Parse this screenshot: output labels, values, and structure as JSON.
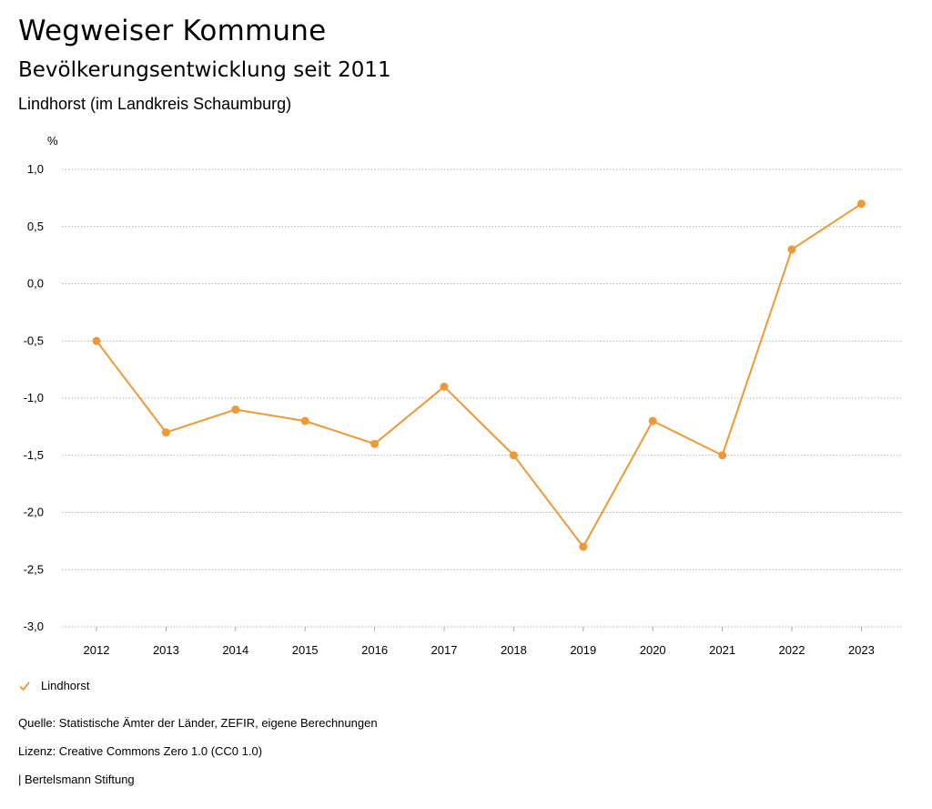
{
  "header": {
    "title": "Wegweiser Kommune",
    "subtitle": "Bevölkerungsentwicklung seit 2011",
    "region": "Lindhorst (im Landkreis Schaumburg)"
  },
  "chart_data": {
    "type": "line",
    "ylabel": "%",
    "xlabel": "",
    "ylim": [
      -3.0,
      1.0
    ],
    "yticks": [
      1.0,
      0.5,
      0.0,
      -0.5,
      -1.0,
      -1.5,
      -2.0,
      -2.5,
      -3.0
    ],
    "ytick_labels": [
      "1,0",
      "0,5",
      "0,0",
      "-0,5",
      "-1,0",
      "-1,5",
      "-2,0",
      "-2,5",
      "-3,0"
    ],
    "categories": [
      "2012",
      "2013",
      "2014",
      "2015",
      "2016",
      "2017",
      "2018",
      "2019",
      "2020",
      "2021",
      "2022",
      "2023"
    ],
    "series": [
      {
        "name": "Lindhorst",
        "color": "#ed9a36",
        "values": [
          -0.5,
          -1.3,
          -1.1,
          -1.2,
          -1.4,
          -0.9,
          -1.5,
          -2.3,
          -1.2,
          -1.5,
          0.3,
          0.7
        ]
      }
    ],
    "grid": "horizontal dotted",
    "legend_position": "bottom-left"
  },
  "legend": {
    "label": "Lindhorst",
    "icon": "check-icon"
  },
  "footer": {
    "source": "Quelle: Statistische Ämter der Länder, ZEFIR, eigene Berechnungen",
    "license": "Lizenz: Creative Commons Zero 1.0 (CC0 1.0)",
    "publisher": "| Bertelsmann Stiftung"
  }
}
